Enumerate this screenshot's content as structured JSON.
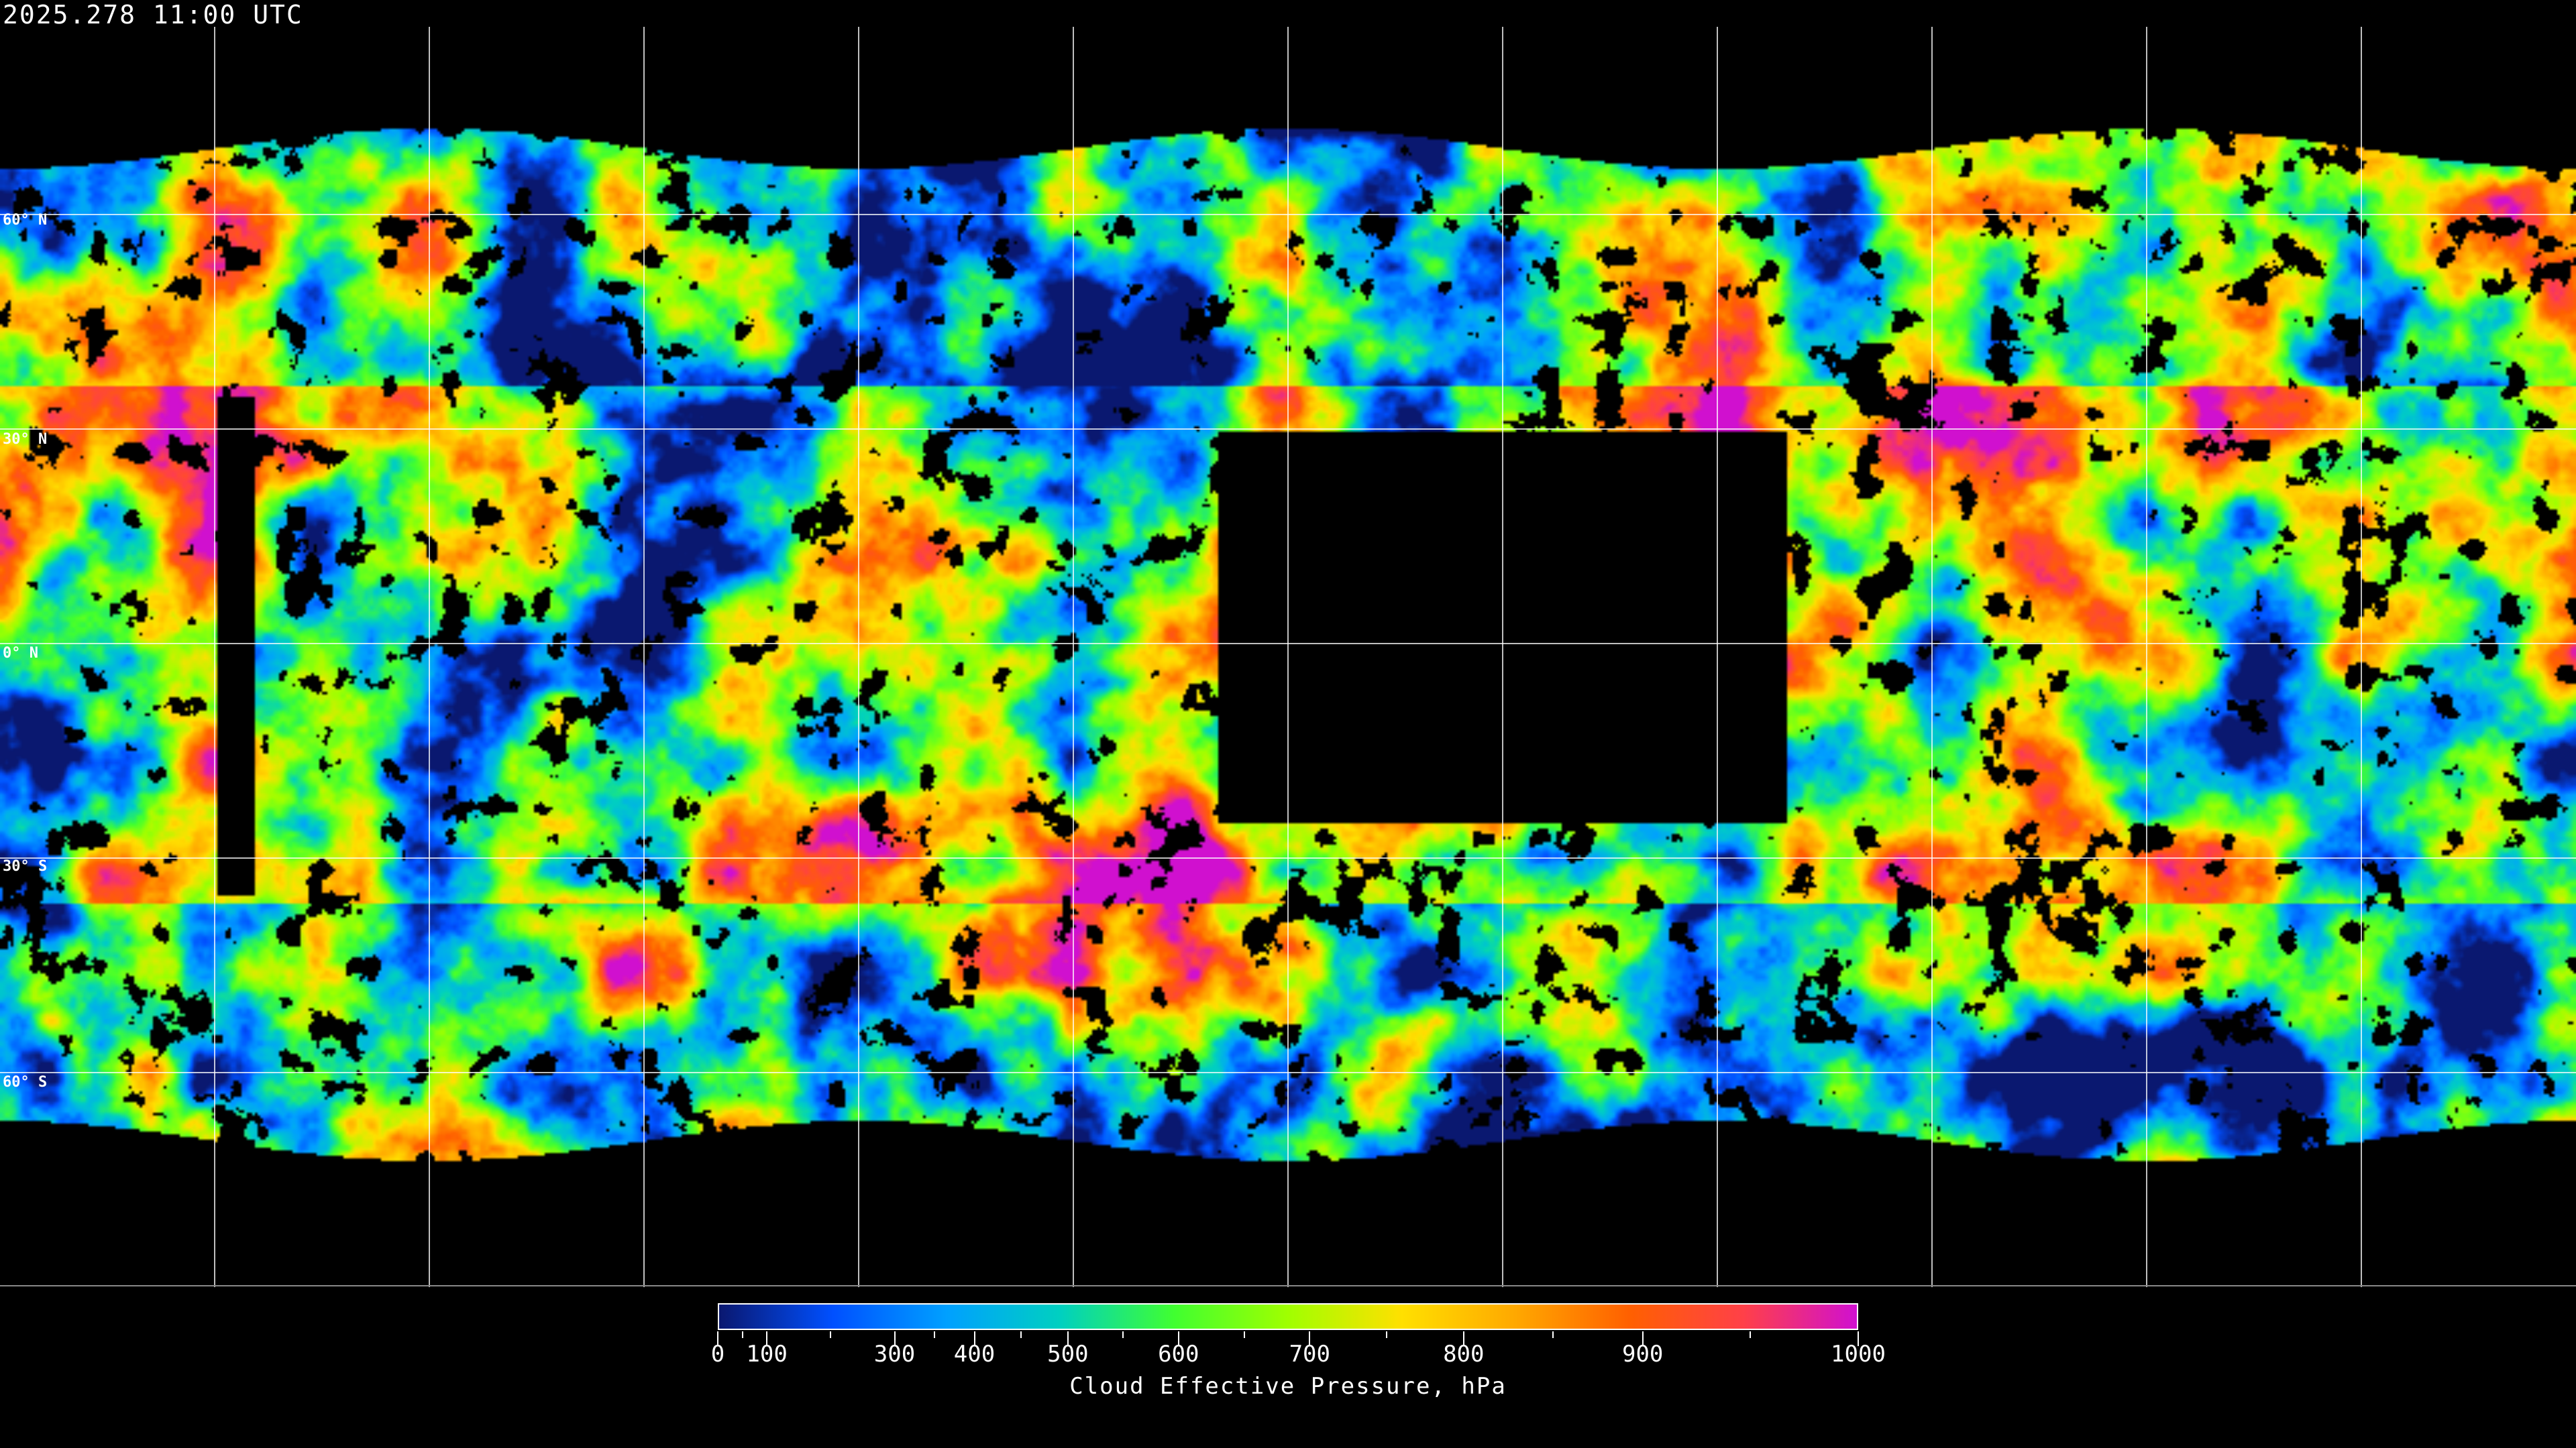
{
  "title": "2025.278 11:00 UTC",
  "latitude_labels": [
    "60° N",
    "30° N",
    "0° N",
    "30° S",
    "60° S"
  ],
  "colorbar": {
    "label": "Cloud Effective Pressure, hPa",
    "major_ticks": [
      "0",
      "100",
      "300",
      "400",
      "500",
      "600",
      "700",
      "800",
      "900",
      "1000"
    ],
    "tick_values": [
      0,
      100,
      300,
      400,
      500,
      600,
      700,
      800,
      900,
      1000
    ],
    "colormap": [
      "#0a1870",
      "#0050ff",
      "#00a0ff",
      "#00d0c0",
      "#40ff30",
      "#a0ff00",
      "#ffe000",
      "#ffa800",
      "#ff6000",
      "#ff4048",
      "#d010d0"
    ]
  },
  "grid": {
    "line_color": "#ffffff",
    "no_data_color": "#000000"
  }
}
